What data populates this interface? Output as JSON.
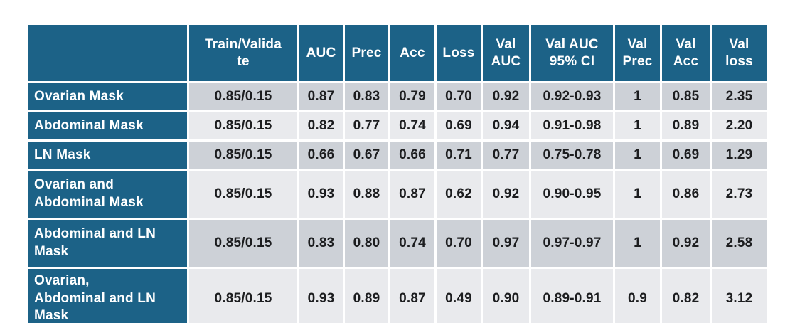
{
  "colors": {
    "header_teal": "#1c6287",
    "row_gray": "#cdd1d7",
    "row_light": "#e9eaed",
    "text_dark": "#1c1d1f",
    "gap_white": "#ffffff"
  },
  "table": {
    "headers": [
      "",
      "Train/Valida\nte",
      "AUC",
      "Prec",
      "Acc",
      "Loss",
      "Val\nAUC",
      "Val AUC\n95% CI",
      "Val\nPrec",
      "Val\nAcc",
      "Val\nloss"
    ],
    "rows": [
      {
        "label": "Ovarian Mask",
        "values": [
          "0.85/0.15",
          "0.87",
          "0.83",
          "0.79",
          "0.70",
          "0.92",
          "0.92-0.93",
          "1",
          "0.85",
          "2.35"
        ]
      },
      {
        "label": "Abdominal Mask",
        "values": [
          "0.85/0.15",
          "0.82",
          "0.77",
          "0.74",
          "0.69",
          "0.94",
          "0.91-0.98",
          "1",
          "0.89",
          "2.20"
        ]
      },
      {
        "label": "LN Mask",
        "values": [
          "0.85/0.15",
          "0.66",
          "0.67",
          "0.66",
          "0.71",
          "0.77",
          "0.75-0.78",
          "1",
          "0.69",
          "1.29"
        ]
      },
      {
        "label": "Ovarian and\nAbdominal Mask",
        "values": [
          "0.85/0.15",
          "0.93",
          "0.88",
          "0.87",
          "0.62",
          "0.92",
          "0.90-0.95",
          "1",
          "0.86",
          "2.73"
        ]
      },
      {
        "label": "Abdominal and LN\nMask",
        "values": [
          "0.85/0.15",
          "0.83",
          "0.80",
          "0.74",
          "0.70",
          "0.97",
          "0.97-0.97",
          "1",
          "0.92",
          "2.58"
        ]
      },
      {
        "label": "Ovarian,\nAbdominal and LN\nMask",
        "values": [
          "0.85/0.15",
          "0.93",
          "0.89",
          "0.87",
          "0.49",
          "0.90",
          "0.89-0.91",
          "0.9",
          "0.82",
          "3.12"
        ]
      }
    ]
  },
  "chart_data": {
    "type": "table",
    "title": "",
    "columns": [
      "",
      "Train/Validate",
      "AUC",
      "Prec",
      "Acc",
      "Loss",
      "Val AUC",
      "Val AUC 95% CI",
      "Val Prec",
      "Val Acc",
      "Val loss"
    ],
    "rows": [
      [
        "Ovarian Mask",
        "0.85/0.15",
        "0.87",
        "0.83",
        "0.79",
        "0.70",
        "0.92",
        "0.92-0.93",
        "1",
        "0.85",
        "2.35"
      ],
      [
        "Abdominal Mask",
        "0.85/0.15",
        "0.82",
        "0.77",
        "0.74",
        "0.69",
        "0.94",
        "0.91-0.98",
        "1",
        "0.89",
        "2.20"
      ],
      [
        "LN Mask",
        "0.85/0.15",
        "0.66",
        "0.67",
        "0.66",
        "0.71",
        "0.77",
        "0.75-0.78",
        "1",
        "0.69",
        "1.29"
      ],
      [
        "Ovarian and Abdominal Mask",
        "0.85/0.15",
        "0.93",
        "0.88",
        "0.87",
        "0.62",
        "0.92",
        "0.90-0.95",
        "1",
        "0.86",
        "2.73"
      ],
      [
        "Abdominal and LN Mask",
        "0.85/0.15",
        "0.83",
        "0.80",
        "0.74",
        "0.70",
        "0.97",
        "0.97-0.97",
        "1",
        "0.92",
        "2.58"
      ],
      [
        "Ovarian, Abdominal and LN Mask",
        "0.85/0.15",
        "0.93",
        "0.89",
        "0.87",
        "0.49",
        "0.90",
        "0.89-0.91",
        "0.9",
        "0.82",
        "3.12"
      ]
    ]
  }
}
